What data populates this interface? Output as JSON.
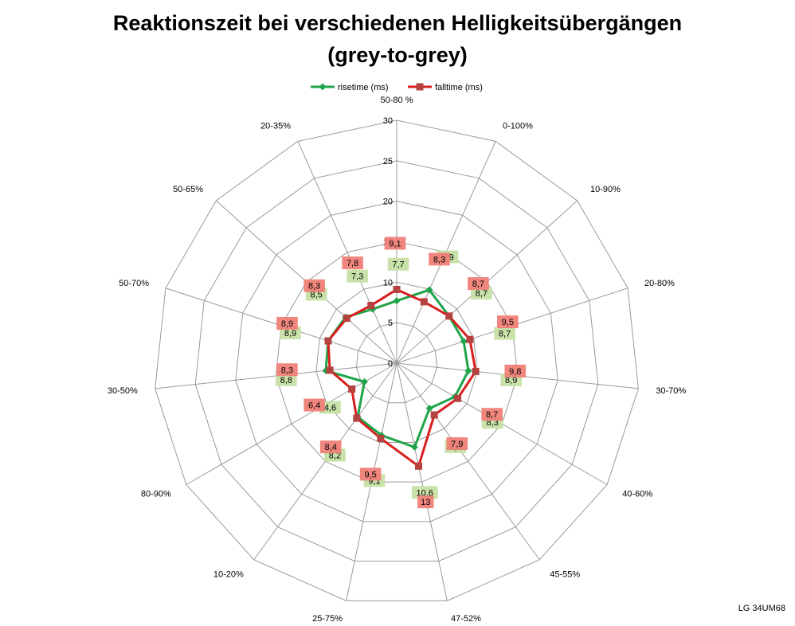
{
  "title_line1": "Reaktionszeit bei verschiedenen Helligkeitsübergängen",
  "title_line2": "(grey-to-grey)",
  "footer": "LG 34UM68",
  "chart_data": {
    "type": "radar",
    "categories": [
      "50-80 %",
      "0-100%",
      "10-90%",
      "20-80%",
      "30-70%",
      "40-60%",
      "45-55%",
      "47-52%",
      "25-75%",
      "10-20%",
      "80-90%",
      "30-50%",
      "50-70%",
      "50-65%",
      "20-35%"
    ],
    "rlim": [
      0,
      30
    ],
    "ticks": [
      "0",
      "5",
      "10",
      "15",
      "20",
      "25",
      "30"
    ],
    "tick_values": [
      0,
      5,
      10,
      15,
      20,
      25,
      30
    ],
    "series": [
      {
        "name": "risetime (ms)",
        "color": "#1fa44a",
        "label_bg": "#c5e0a5",
        "values": [
          7.7,
          9.9,
          8.7,
          8.7,
          8.9,
          8.3,
          6.9,
          10.6,
          9.1,
          8.2,
          4.6,
          8.8,
          8.9,
          8.5,
          7.3
        ],
        "labels": [
          "7,7",
          "9,9",
          "8,7",
          "8,7",
          "8,9",
          "8,3",
          "6,9",
          "10,6",
          "9,1",
          "8,2",
          "4,6",
          "8,8",
          "8,9",
          "8,5",
          "7,3"
        ]
      },
      {
        "name": "falltime (ms)",
        "color": "#d91f1f",
        "label_bg": "#f08077",
        "values": [
          9.1,
          8.3,
          8.7,
          9.5,
          9.8,
          8.7,
          7.9,
          13,
          9.5,
          8.4,
          6.4,
          8.3,
          8.9,
          8.3,
          7.8
        ],
        "labels": [
          "9,1",
          "8,3",
          "8,7",
          "9,5",
          "9,8",
          "8,7",
          "7,9",
          "13",
          "9,5",
          "8,4",
          "6,4",
          "8,3",
          "8,9",
          "8,3",
          "7,8"
        ]
      }
    ],
    "grid": true,
    "legend": "top"
  }
}
